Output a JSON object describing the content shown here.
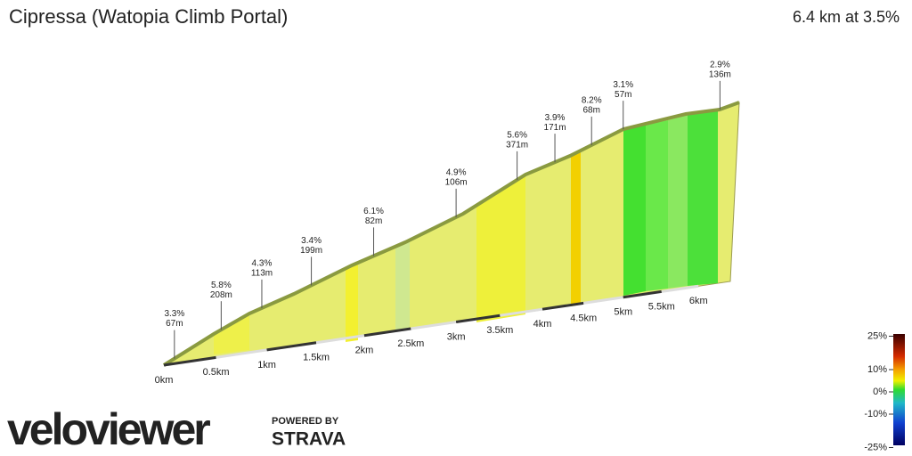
{
  "chart_data": {
    "type": "profile",
    "title": "Cipressa (Watopia Climb Portal)",
    "subtitle": "6.4 km at 3.5%",
    "segments": {
      "km": [
        0.1,
        0.55,
        0.95,
        1.45,
        2.1,
        3.0,
        3.7,
        4.15,
        4.6,
        5.0,
        6.3
      ],
      "grades": [
        3.3,
        5.8,
        4.3,
        3.4,
        6.1,
        4.9,
        5.6,
        3.9,
        8.2,
        3.1,
        2.9
      ],
      "grade_labels": [
        "3.3%",
        "5.8%",
        "4.3%",
        "3.4%",
        "6.1%",
        "4.9%",
        "5.6%",
        "3.9%",
        "8.2%",
        "3.1%",
        "2.9%"
      ],
      "lengths": [
        67,
        208,
        113,
        199,
        82,
        106,
        371,
        171,
        68,
        57,
        136
      ],
      "length_labels": [
        "67m",
        "208m",
        "113m",
        "199m",
        "82m",
        "106m",
        "371m",
        "171m",
        "68m",
        "57m",
        "136m"
      ]
    },
    "xlim": [
      0,
      6.4
    ],
    "xticks": [
      {
        "value": 0,
        "label": "0km"
      },
      {
        "value": 0.5,
        "label": "0.5km"
      },
      {
        "value": 1,
        "label": "1km"
      },
      {
        "value": 1.5,
        "label": "1.5km"
      },
      {
        "value": 2,
        "label": "2km"
      },
      {
        "value": 2.5,
        "label": "2.5km"
      },
      {
        "value": 3,
        "label": "3km"
      },
      {
        "value": 3.5,
        "label": "3.5km"
      },
      {
        "value": 4,
        "label": "4km"
      },
      {
        "value": 4.5,
        "label": "4.5km"
      },
      {
        "value": 5,
        "label": "5km"
      },
      {
        "value": 5.5,
        "label": "5.5km"
      },
      {
        "value": 6,
        "label": "6km"
      }
    ],
    "legend": {
      "ticks": [
        {
          "value": 25,
          "label": "25%"
        },
        {
          "value": 10,
          "label": "10%"
        },
        {
          "value": 0,
          "label": "0%"
        },
        {
          "value": -10,
          "label": "-10%"
        },
        {
          "value": -25,
          "label": "-25%"
        }
      ]
    },
    "branding": {
      "logo": "veloviewer",
      "powered": "POWERED BY",
      "partner": "STRAVA"
    }
  }
}
